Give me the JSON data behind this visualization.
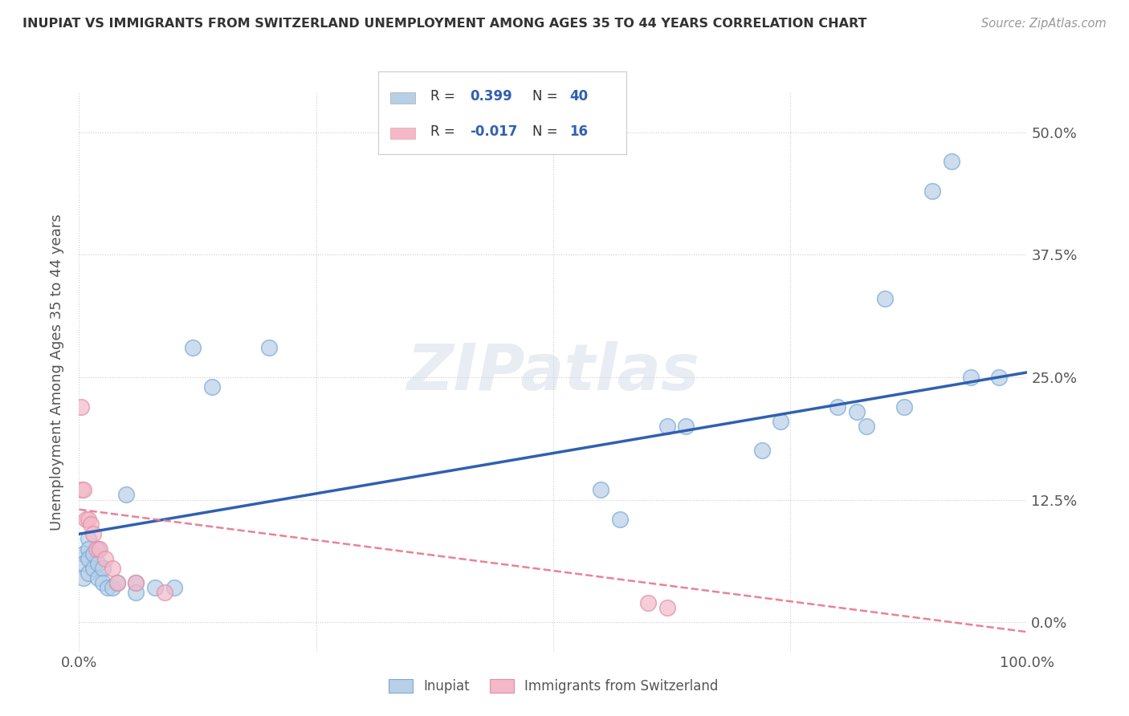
{
  "title": "INUPIAT VS IMMIGRANTS FROM SWITZERLAND UNEMPLOYMENT AMONG AGES 35 TO 44 YEARS CORRELATION CHART",
  "source": "Source: ZipAtlas.com",
  "ylabel": "Unemployment Among Ages 35 to 44 years",
  "xlim": [
    0.0,
    1.0
  ],
  "ylim": [
    -0.03,
    0.54
  ],
  "yticks": [
    0.0,
    0.125,
    0.25,
    0.375,
    0.5
  ],
  "ytick_labels": [
    "0.0%",
    "12.5%",
    "25.0%",
    "37.5%",
    "50.0%"
  ],
  "xticks": [
    0.0,
    0.25,
    0.5,
    0.75,
    1.0
  ],
  "xtick_labels": [
    "0.0%",
    "",
    "",
    "",
    "100.0%"
  ],
  "inupiat_color": "#b8cfe8",
  "swiss_color": "#f4b8c8",
  "inupiat_line_color": "#3060b0",
  "swiss_line_color": "#e8829a",
  "inupiat_x": [
    0.005,
    0.005,
    0.005,
    0.01,
    0.01,
    0.01,
    0.01,
    0.015,
    0.015,
    0.02,
    0.02,
    0.02,
    0.025,
    0.025,
    0.03,
    0.035,
    0.04,
    0.05,
    0.06,
    0.06,
    0.08,
    0.1,
    0.12,
    0.14,
    0.2,
    0.55,
    0.57,
    0.62,
    0.64,
    0.72,
    0.74,
    0.8,
    0.82,
    0.83,
    0.85,
    0.87,
    0.9,
    0.92,
    0.94,
    0.97
  ],
  "inupiat_y": [
    0.07,
    0.06,
    0.045,
    0.085,
    0.075,
    0.065,
    0.05,
    0.07,
    0.055,
    0.075,
    0.06,
    0.045,
    0.055,
    0.04,
    0.035,
    0.035,
    0.04,
    0.13,
    0.04,
    0.03,
    0.035,
    0.035,
    0.28,
    0.24,
    0.28,
    0.135,
    0.105,
    0.2,
    0.2,
    0.175,
    0.205,
    0.22,
    0.215,
    0.2,
    0.33,
    0.22,
    0.44,
    0.47,
    0.25,
    0.25
  ],
  "swiss_x": [
    0.002,
    0.003,
    0.005,
    0.007,
    0.01,
    0.012,
    0.015,
    0.018,
    0.022,
    0.028,
    0.035,
    0.04,
    0.06,
    0.09,
    0.6,
    0.62
  ],
  "swiss_y": [
    0.22,
    0.135,
    0.135,
    0.105,
    0.105,
    0.1,
    0.09,
    0.075,
    0.075,
    0.065,
    0.055,
    0.04,
    0.04,
    0.03,
    0.02,
    0.015
  ],
  "inupiat_line_x0": 0.0,
  "inupiat_line_y0": 0.09,
  "inupiat_line_x1": 1.0,
  "inupiat_line_y1": 0.255,
  "swiss_line_x0": 0.0,
  "swiss_line_y0": 0.115,
  "swiss_line_x1": 1.0,
  "swiss_line_y1": -0.01
}
